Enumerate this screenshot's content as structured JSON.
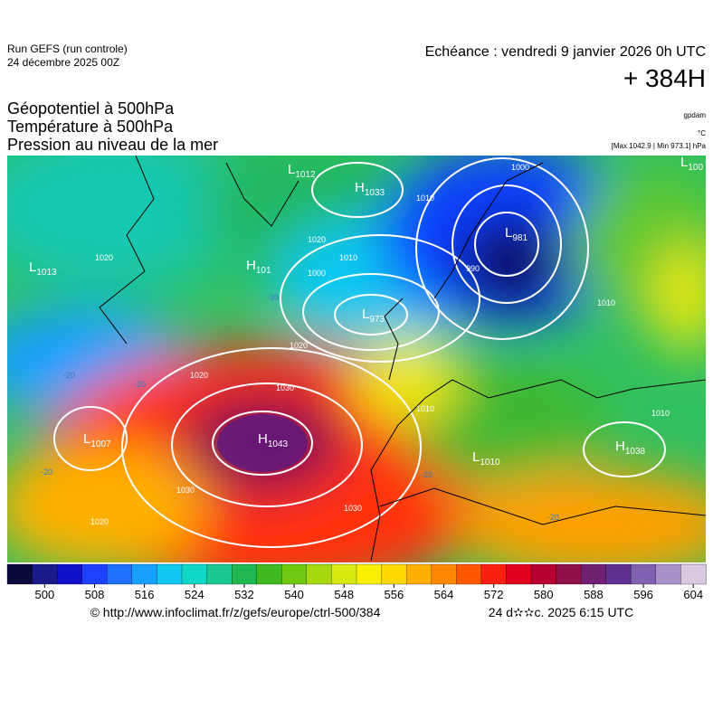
{
  "header": {
    "run": "Run GEFS (run controle)",
    "date": "24 décembre 2025 00Z",
    "valid": "Echéance : vendredi 9 janvier 2026 0h UTC",
    "lead": "+ 384H"
  },
  "fields": [
    "Géopotentiel à 500hPa",
    "Température à 500hPa",
    "Pression au niveau de la mer"
  ],
  "units": [
    "gpdam",
    "°C",
    "[Max 1042.9 | Min 973.1] hPa"
  ],
  "centers": [
    {
      "letter": "H",
      "value": "1043"
    },
    {
      "letter": "L",
      "value": "973"
    },
    {
      "letter": "L",
      "value": "981"
    },
    {
      "letter": "H",
      "value": "1033"
    },
    {
      "letter": "L",
      "value": "1013"
    },
    {
      "letter": "H",
      "value": "1038"
    },
    {
      "letter": "L",
      "value": "1010"
    },
    {
      "letter": "L",
      "value": "1007"
    },
    {
      "letter": "H",
      "value": "101"
    },
    {
      "letter": "L",
      "value": "1012"
    },
    {
      "letter": "L",
      "value": "100"
    }
  ],
  "isobar_labels": [
    "1030",
    "1030",
    "1020",
    "1030",
    "1020",
    "1020",
    "1010",
    "1000",
    "990",
    "1000",
    "1010",
    "1010",
    "1020",
    "1020",
    "1010",
    "1010"
  ],
  "isotherm_labels": [
    "-20",
    "-20",
    "-30",
    "-20",
    "-20",
    "-20"
  ],
  "colorbar": {
    "clim": [
      494,
      606
    ],
    "ticks": [
      500,
      508,
      516,
      524,
      532,
      540,
      548,
      556,
      564,
      572,
      580,
      588,
      596,
      604
    ],
    "colors": [
      "#0a0a3c",
      "#1a1a8a",
      "#1010c8",
      "#1e40ff",
      "#2070ff",
      "#18a0ff",
      "#10c8f0",
      "#10d8c8",
      "#18c890",
      "#20b850",
      "#40b820",
      "#70c810",
      "#a8d810",
      "#d8e810",
      "#f8f000",
      "#ffd800",
      "#ffb000",
      "#ff8800",
      "#ff5800",
      "#f82010",
      "#e00020",
      "#b80030",
      "#901048",
      "#702070",
      "#603090",
      "#8060b0",
      "#a890c8",
      "#d8c8e0"
    ]
  },
  "footer": {
    "url": "© http://www.infoclimat.fr/z/gefs/europe/ctrl-500/384",
    "timestamp": "24 d✫✫c. 2025  6:15 UTC"
  }
}
